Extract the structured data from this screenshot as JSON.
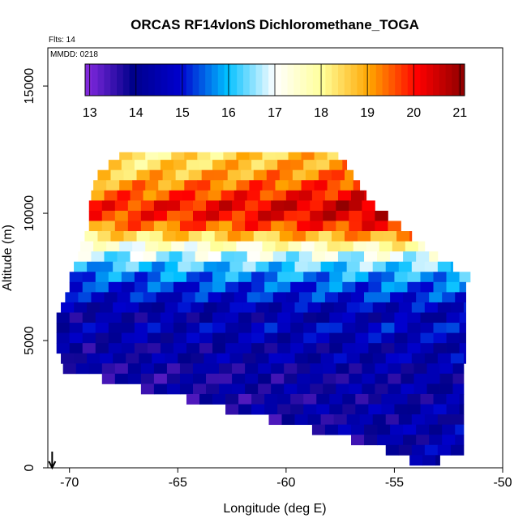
{
  "chart_data": {
    "type": "heatmap",
    "title": "ORCAS RF14vlonS Dichloromethane_TOGA",
    "flights_note": "Flts: 14",
    "date_note": "MMDD: 0218",
    "xlabel": "Longitude (deg E)",
    "ylabel": "Altitude (m)",
    "xlim": [
      -71,
      -50
    ],
    "ylim": [
      0,
      16500
    ],
    "x_ticks": [
      -70,
      -65,
      -60,
      -55,
      -50
    ],
    "x_tick_labels": [
      "-70",
      "-65",
      "-60",
      "-55",
      "-50"
    ],
    "y_ticks": [
      0,
      5000,
      10000,
      15000
    ],
    "y_tick_labels": [
      "0",
      "5000",
      "10000",
      "15000"
    ],
    "colorbar": {
      "min": 12.9,
      "max": 21.1,
      "ticks": [
        13,
        14,
        15,
        16,
        17,
        18,
        19,
        20,
        21
      ],
      "tick_labels": [
        "13",
        "14",
        "15",
        "16",
        "17",
        "18",
        "19",
        "20",
        "21"
      ],
      "colors": [
        "#8a2be2",
        "#00008b",
        "#0000cd",
        "#00bfff",
        "#ffffff",
        "#ffff99",
        "#ffa500",
        "#ff0000",
        "#8b0000"
      ]
    },
    "marker": {
      "longitude": -70.8,
      "altitude": 0,
      "symbol": "down-arrow"
    },
    "profile_rows": [
      {
        "alt": 12200,
        "lon_min": -67.7,
        "lon_max": -57.6,
        "value": 18.5
      },
      {
        "alt": 11900,
        "lon_min": -68.2,
        "lon_max": -57.2,
        "value": 18.7
      },
      {
        "alt": 11500,
        "lon_min": -68.7,
        "lon_max": -56.9,
        "value": 19.0
      },
      {
        "alt": 11100,
        "lon_min": -68.9,
        "lon_max": -56.6,
        "value": 19.4
      },
      {
        "alt": 10700,
        "lon_min": -69.0,
        "lon_max": -56.3,
        "value": 19.8
      },
      {
        "alt": 10300,
        "lon_min": -69.1,
        "lon_max": -55.9,
        "value": 20.2
      },
      {
        "alt": 9900,
        "lon_min": -69.1,
        "lon_max": -55.3,
        "value": 20.1
      },
      {
        "alt": 9500,
        "lon_min": -69.1,
        "lon_max": -54.7,
        "value": 19.6
      },
      {
        "alt": 9100,
        "lon_min": -69.3,
        "lon_max": -54.2,
        "value": 18.7
      },
      {
        "alt": 8700,
        "lon_min": -69.5,
        "lon_max": -53.6,
        "value": 17.6
      },
      {
        "alt": 8300,
        "lon_min": -69.6,
        "lon_max": -53.0,
        "value": 16.8
      },
      {
        "alt": 7900,
        "lon_min": -69.8,
        "lon_max": -52.3,
        "value": 16.2
      },
      {
        "alt": 7500,
        "lon_min": -70.0,
        "lon_max": -51.5,
        "value": 15.7
      },
      {
        "alt": 7100,
        "lon_min": -70.0,
        "lon_max": -51.7,
        "value": 15.3
      },
      {
        "alt": 6700,
        "lon_min": -70.2,
        "lon_max": -51.7,
        "value": 15.0
      },
      {
        "alt": 6300,
        "lon_min": -70.4,
        "lon_max": -51.7,
        "value": 14.6
      },
      {
        "alt": 5900,
        "lon_min": -70.6,
        "lon_max": -51.7,
        "value": 14.3
      },
      {
        "alt": 5500,
        "lon_min": -70.6,
        "lon_max": -51.7,
        "value": 14.7
      },
      {
        "alt": 5100,
        "lon_min": -70.6,
        "lon_max": -51.7,
        "value": 14.5
      },
      {
        "alt": 4700,
        "lon_min": -70.6,
        "lon_max": -51.7,
        "value": 14.2
      },
      {
        "alt": 4300,
        "lon_min": -70.4,
        "lon_max": -51.7,
        "value": 14.4
      },
      {
        "alt": 3900,
        "lon_min": -70.3,
        "lon_max": -51.8,
        "value": 14.1
      },
      {
        "alt": 3500,
        "lon_min": -68.5,
        "lon_max": -51.8,
        "value": 14.0
      },
      {
        "alt": 3100,
        "lon_min": -66.7,
        "lon_max": -51.8,
        "value": 14.2
      },
      {
        "alt": 2700,
        "lon_min": -64.6,
        "lon_max": -51.8,
        "value": 14.0
      },
      {
        "alt": 2300,
        "lon_min": -62.8,
        "lon_max": -51.8,
        "value": 14.3
      },
      {
        "alt": 1900,
        "lon_min": -60.8,
        "lon_max": -51.8,
        "value": 14.1
      },
      {
        "alt": 1500,
        "lon_min": -58.8,
        "lon_max": -51.8,
        "value": 14.4
      },
      {
        "alt": 1100,
        "lon_min": -57.0,
        "lon_max": -51.8,
        "value": 14.2
      },
      {
        "alt": 700,
        "lon_min": -55.4,
        "lon_max": -51.8,
        "value": 14.5
      },
      {
        "alt": 300,
        "lon_min": -54.3,
        "lon_max": -52.9,
        "value": 14.3
      }
    ]
  }
}
